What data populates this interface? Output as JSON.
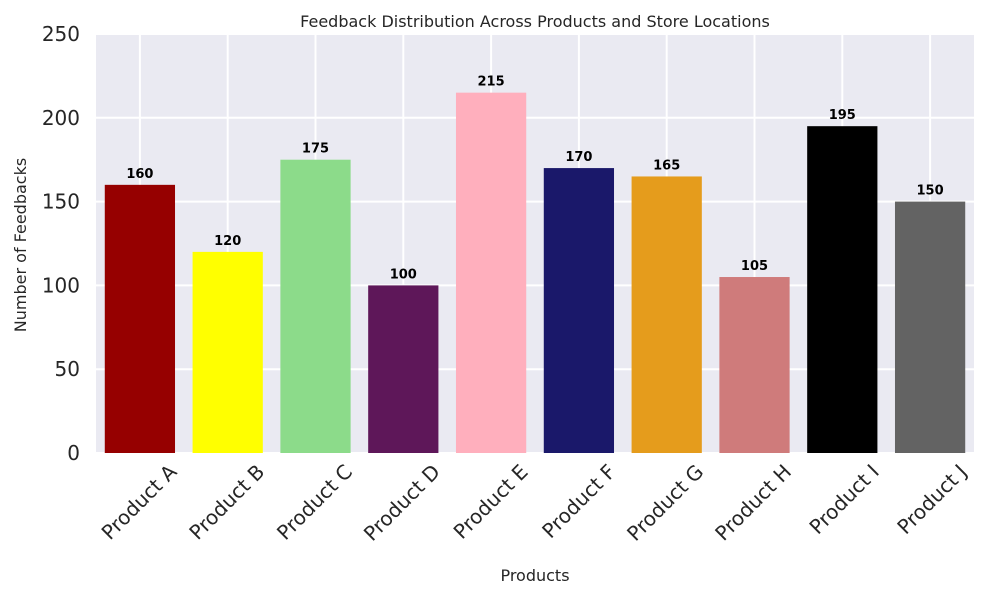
{
  "chart_data": {
    "type": "bar",
    "title": "Feedback Distribution Across Products and Store Locations",
    "xlabel": "Products",
    "ylabel": "Number of Feedbacks",
    "categories": [
      "Product A",
      "Product B",
      "Product C",
      "Product D",
      "Product E",
      "Product F",
      "Product G",
      "Product H",
      "Product I",
      "Product J"
    ],
    "values": [
      160,
      120,
      175,
      100,
      215,
      170,
      165,
      105,
      195,
      150
    ],
    "colors": [
      "#960000",
      "#ffff00",
      "#8cdb8a",
      "#5e1759",
      "#ffafbd",
      "#1a186a",
      "#e59c1c",
      "#cf7b7b",
      "#000000",
      "#636363"
    ],
    "ylim": [
      0,
      250
    ],
    "yticks": [
      0,
      50,
      100,
      150,
      200,
      250
    ],
    "grid": true,
    "background": "#eaeaf2",
    "grid_color": "#ffffff"
  }
}
